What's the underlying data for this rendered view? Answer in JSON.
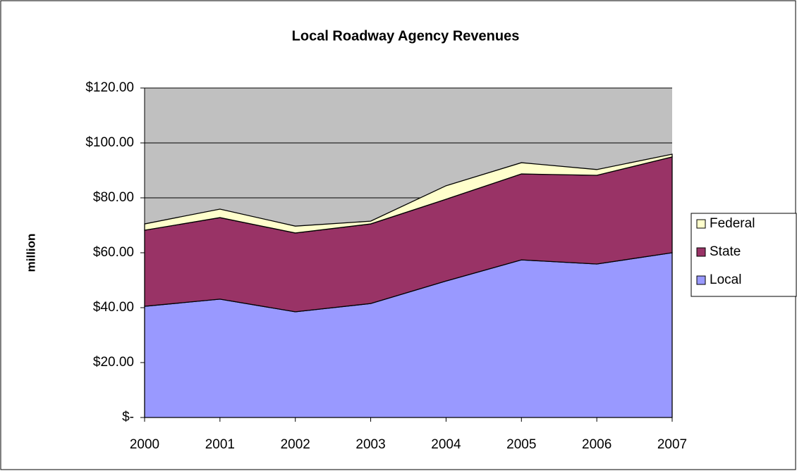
{
  "chart_data": {
    "type": "area",
    "stacked": true,
    "title": "Local Roadway Agency Revenues",
    "y_label": "million",
    "categories": [
      "2000",
      "2001",
      "2002",
      "2003",
      "2004",
      "2005",
      "2006",
      "2007"
    ],
    "series": [
      {
        "name": "Local",
        "color": "#9999ff",
        "values": [
          40.5,
          43.1,
          38.5,
          41.5,
          49.7,
          57.4,
          55.9,
          60.0
        ]
      },
      {
        "name": "State",
        "color": "#993366",
        "values": [
          27.7,
          29.7,
          28.7,
          29.0,
          29.8,
          31.3,
          32.3,
          34.9
        ]
      },
      {
        "name": "Federal",
        "color": "#ffffcc",
        "values": [
          2.3,
          3.1,
          2.5,
          1.0,
          4.9,
          4.1,
          2.1,
          1.0
        ]
      }
    ],
    "ylim": [
      0,
      120
    ],
    "yticks": [
      {
        "value": 0,
        "label": "$-"
      },
      {
        "value": 20,
        "label": "$20.00"
      },
      {
        "value": 40,
        "label": "$40.00"
      },
      {
        "value": 60,
        "label": "$60.00"
      },
      {
        "value": 80,
        "label": "$80.00"
      },
      {
        "value": 100,
        "label": "$100.00"
      },
      {
        "value": 120,
        "label": "$120.00"
      }
    ],
    "grid": true,
    "legend": "right",
    "plot_background": "#c0c0c0"
  }
}
